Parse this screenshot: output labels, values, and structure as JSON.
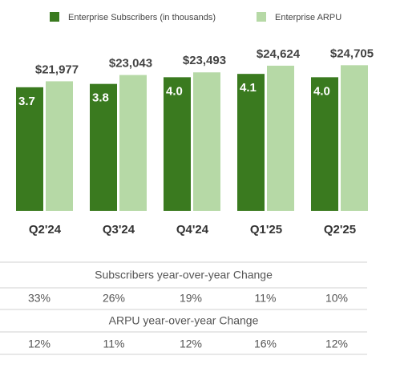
{
  "chart_data": {
    "type": "bar",
    "categories": [
      "Q2'24",
      "Q3'24",
      "Q4'24",
      "Q1'25",
      "Q2'25"
    ],
    "series": [
      {
        "name": "Enterprise Subscribers (in thousands)",
        "color": "#3a7a1f",
        "values": [
          3.7,
          3.8,
          4.0,
          4.1,
          4.0
        ],
        "value_labels": [
          "3.7",
          "3.8",
          "4.0",
          "4.1",
          "4.0"
        ]
      },
      {
        "name": "Enterprise ARPU",
        "color": "#b6d9a6",
        "axis": "y2",
        "values": [
          21977,
          23043,
          23493,
          24624,
          24705
        ],
        "value_labels": [
          "$21,977",
          "$23,043",
          "$23,493",
          "$24,624",
          "$24,705"
        ]
      }
    ],
    "ylim": [
      0,
      6
    ],
    "y2lim": [
      0,
      34000
    ],
    "grid": false
  },
  "table": {
    "sections": [
      {
        "title": "Subscribers year-over-year Change",
        "cells": [
          "33%",
          "26%",
          "19%",
          "11%",
          "10%"
        ]
      },
      {
        "title": "ARPU year-over-year Change",
        "cells": [
          "12%",
          "11%",
          "12%",
          "16%",
          "12%"
        ]
      }
    ]
  }
}
